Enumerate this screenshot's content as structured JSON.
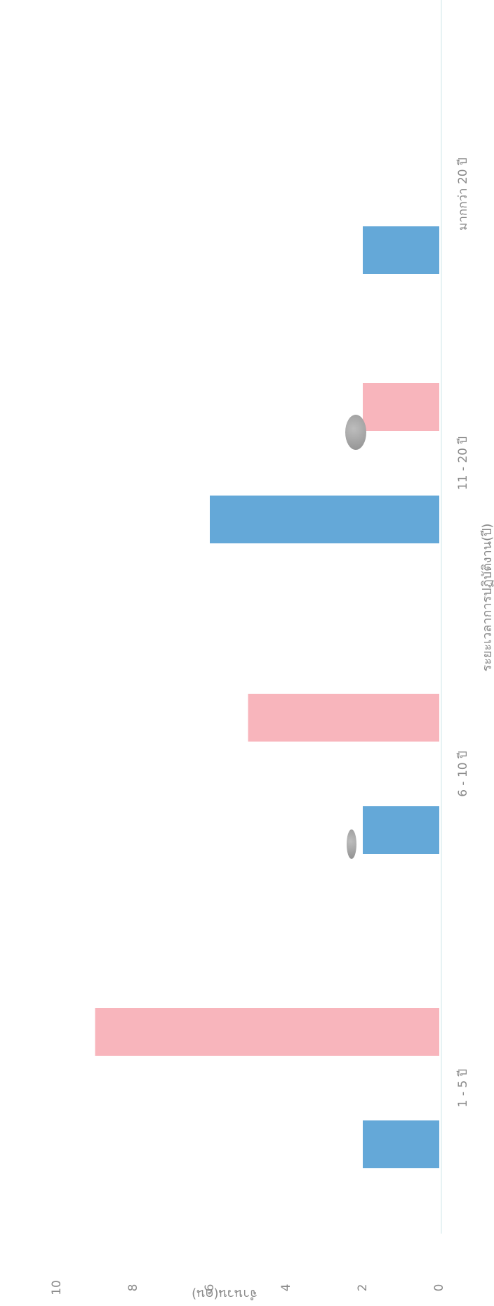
{
  "chart_data": {
    "type": "bar",
    "orientation": "rotated-90-ccw",
    "categories": [
      "1 - 5 ปี",
      "6 - 10 ปี",
      "11 - 20 ปี",
      "มากกว่า 20 ปี"
    ],
    "series": [
      {
        "color": "#64a8d8",
        "values": [
          2,
          2,
          6,
          2
        ]
      },
      {
        "color": "#f8b5bc",
        "values": [
          9,
          5,
          2,
          0
        ]
      }
    ],
    "xlabel": "ระยะเวลาการปฏิบัติงาน(ปี)",
    "ylabel": "จำนวน(คน)",
    "ylim": [
      0,
      10
    ],
    "yticks": [
      "0",
      "2",
      "4",
      "6",
      "8",
      "10"
    ],
    "grid": false,
    "legend": "none"
  }
}
